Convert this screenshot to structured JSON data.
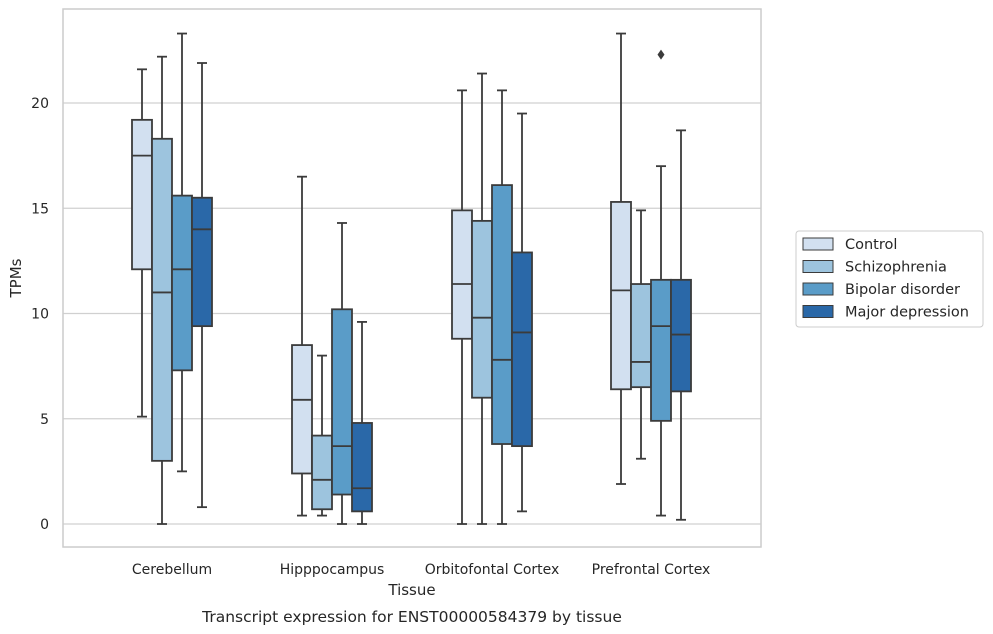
{
  "chart_data": {
    "type": "box",
    "title": "",
    "xlabel": "Tissue",
    "ylabel": "TPMs",
    "caption": "Transcript expression for ENST00000584379 by tissue",
    "ylim": [
      -1.1,
      24.5
    ],
    "yticks": [
      0,
      5,
      10,
      15,
      20
    ],
    "grid": "horizontal",
    "legend_position": "right",
    "categories": [
      "Cerebellum",
      "Hipppocampus",
      "Orbitofontal Cortex",
      "Prefrontal Cortex"
    ],
    "series": [
      {
        "name": "Control",
        "color": "#d2e0f0",
        "boxes": [
          {
            "whislo": 5.1,
            "q1": 12.1,
            "med": 17.5,
            "q3": 19.2,
            "whishi": 21.6,
            "fliers": []
          },
          {
            "whislo": 0.4,
            "q1": 2.4,
            "med": 5.9,
            "q3": 8.5,
            "whishi": 16.5,
            "fliers": []
          },
          {
            "whislo": 0.0,
            "q1": 8.8,
            "med": 11.4,
            "q3": 14.9,
            "whishi": 20.6,
            "fliers": []
          },
          {
            "whislo": 1.9,
            "q1": 6.4,
            "med": 11.1,
            "q3": 15.3,
            "whishi": 23.3,
            "fliers": []
          }
        ]
      },
      {
        "name": "Schizophrenia",
        "color": "#9dc4de",
        "boxes": [
          {
            "whislo": 0.0,
            "q1": 3.0,
            "med": 11.0,
            "q3": 18.3,
            "whishi": 22.2,
            "fliers": []
          },
          {
            "whislo": 0.4,
            "q1": 0.7,
            "med": 2.1,
            "q3": 4.2,
            "whishi": 8.0,
            "fliers": []
          },
          {
            "whislo": 0.0,
            "q1": 6.0,
            "med": 9.8,
            "q3": 14.4,
            "whishi": 21.4,
            "fliers": []
          },
          {
            "whislo": 3.1,
            "q1": 6.5,
            "med": 7.7,
            "q3": 11.4,
            "whishi": 14.9,
            "fliers": []
          }
        ]
      },
      {
        "name": "Bipolar disorder",
        "color": "#5a9cc8",
        "boxes": [
          {
            "whislo": 2.5,
            "q1": 7.3,
            "med": 12.1,
            "q3": 15.6,
            "whishi": 23.3,
            "fliers": []
          },
          {
            "whislo": 0.0,
            "q1": 1.4,
            "med": 3.7,
            "q3": 10.2,
            "whishi": 14.3,
            "fliers": []
          },
          {
            "whislo": 0.0,
            "q1": 3.8,
            "med": 7.8,
            "q3": 16.1,
            "whishi": 20.6,
            "fliers": []
          },
          {
            "whislo": 0.4,
            "q1": 4.9,
            "med": 9.4,
            "q3": 11.6,
            "whishi": 17.0,
            "fliers": [
              22.3
            ]
          }
        ]
      },
      {
        "name": "Major depression",
        "color": "#2a68a8",
        "boxes": [
          {
            "whislo": 0.8,
            "q1": 9.4,
            "med": 14.0,
            "q3": 15.5,
            "whishi": 21.9,
            "fliers": []
          },
          {
            "whislo": 0.0,
            "q1": 0.6,
            "med": 1.7,
            "q3": 4.8,
            "whishi": 9.6,
            "fliers": []
          },
          {
            "whislo": 0.6,
            "q1": 3.7,
            "med": 9.1,
            "q3": 12.9,
            "whishi": 19.5,
            "fliers": []
          },
          {
            "whislo": 0.2,
            "q1": 6.3,
            "med": 9.0,
            "q3": 11.6,
            "whishi": 18.7,
            "fliers": []
          }
        ]
      }
    ]
  }
}
